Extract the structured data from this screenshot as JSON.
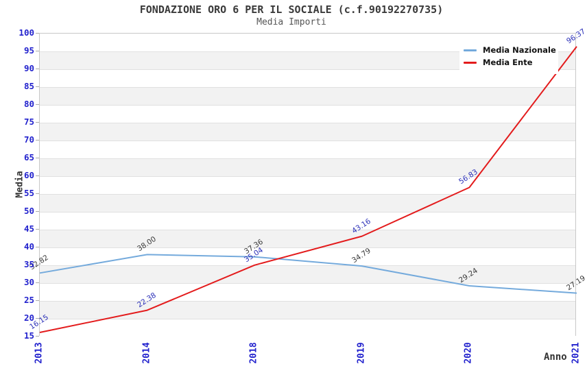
{
  "title": "FONDAZIONE ORO 6 PER IL SOCIALE (c.f.90192270735)",
  "subtitle": "Media Importi",
  "chart_data": {
    "type": "line",
    "categories": [
      "2013",
      "2014",
      "2018",
      "2019",
      "2020",
      "2021"
    ],
    "series": [
      {
        "name": "Media Nazionale",
        "color": "#74aadc",
        "label_color": "#3a3a3a",
        "values": [
          32.82,
          38.0,
          37.36,
          34.79,
          29.24,
          27.19
        ]
      },
      {
        "name": "Media Ente",
        "color": "#e31b1c",
        "label_color": "#2a2fb8",
        "values": [
          16.15,
          22.38,
          35.04,
          43.16,
          56.83,
          96.37
        ]
      }
    ],
    "xlabel": "Anno",
    "ylabel": "Media",
    "ylim": [
      15,
      100
    ],
    "ytick_step": 5,
    "grid": "horizontal-bands",
    "band_color": "#f2f2f2",
    "band_alt_color": "#ffffff",
    "gridline_color": "#e0e0e0",
    "tick_color": "#2121cd",
    "legend_position": "top-right",
    "value_label_decimals": 2
  }
}
